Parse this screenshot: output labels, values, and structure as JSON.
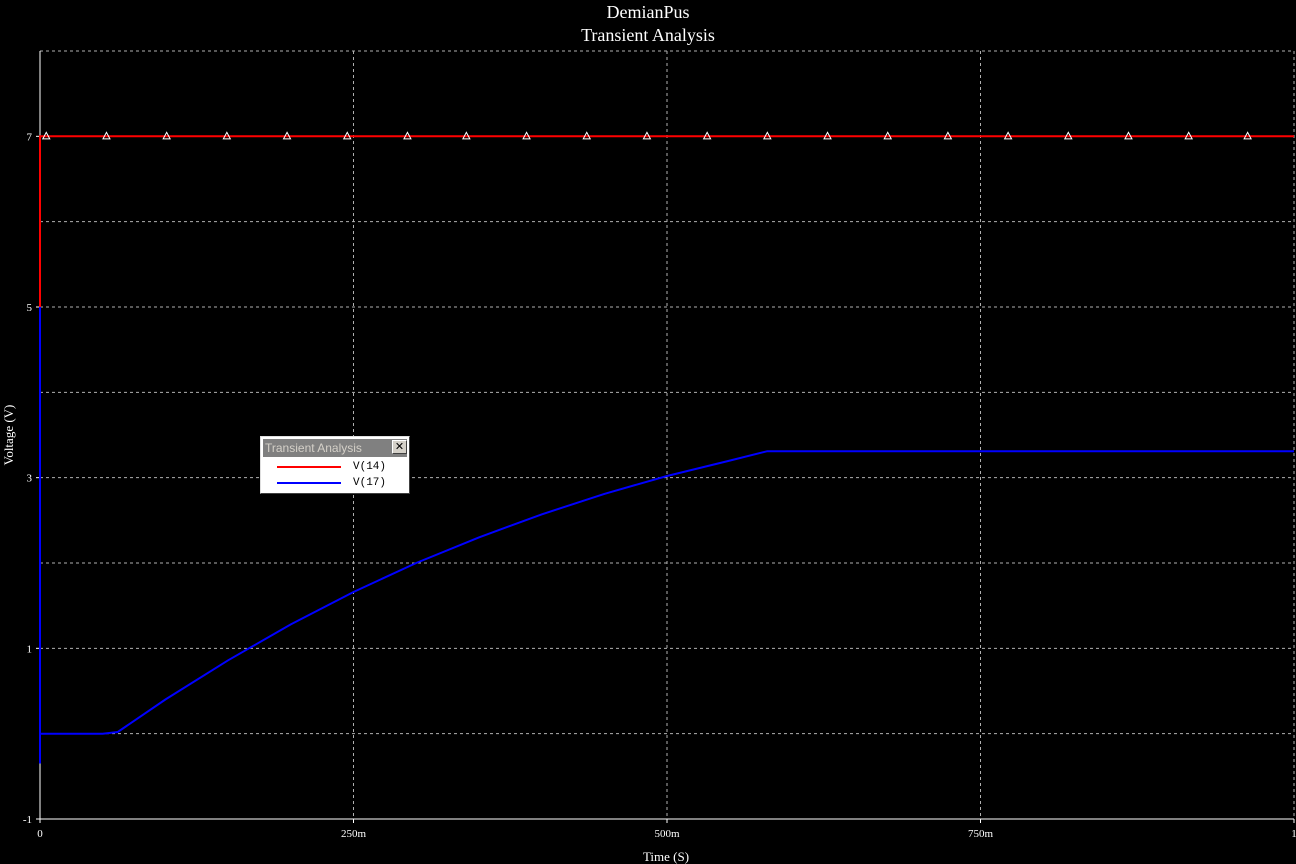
{
  "chart_data": {
    "type": "line",
    "title": "DemianPus",
    "subtitle": "Transient Analysis",
    "xlabel": "Time (S)",
    "ylabel": "Voltage (V)",
    "xlim": [
      0,
      1
    ],
    "ylim": [
      -1,
      8
    ],
    "grid": true,
    "x_ticks": [
      {
        "value": 0,
        "label": "0"
      },
      {
        "value": 0.25,
        "label": "250m"
      },
      {
        "value": 0.5,
        "label": "500m"
      },
      {
        "value": 0.75,
        "label": "750m"
      },
      {
        "value": 1,
        "label": "1"
      }
    ],
    "y_ticks": [
      {
        "value": -1,
        "label": "-1"
      },
      {
        "value": 1,
        "label": "1"
      },
      {
        "value": 3,
        "label": "3"
      },
      {
        "value": 5,
        "label": "5"
      },
      {
        "value": 7,
        "label": "7"
      }
    ],
    "y_gridlines": [
      0,
      1,
      2,
      3,
      4,
      5,
      6,
      7
    ],
    "series": [
      {
        "name": "V(14)",
        "color": "#ff0000",
        "marker": "triangle",
        "marker_color": "#ffffff",
        "x": [
          0,
          0,
          1
        ],
        "y": [
          0,
          7,
          7
        ],
        "marker_x": [
          0.005,
          0.053,
          0.101,
          0.149,
          0.197,
          0.245,
          0.293,
          0.34,
          0.388,
          0.436,
          0.484,
          0.532,
          0.58,
          0.628,
          0.676,
          0.724,
          0.772,
          0.82,
          0.868,
          0.916,
          0.963
        ],
        "marker_y": [
          7,
          7,
          7,
          7,
          7,
          7,
          7,
          7,
          7,
          7,
          7,
          7,
          7,
          7,
          7,
          7,
          7,
          7,
          7,
          7,
          7
        ]
      },
      {
        "name": "V(17)",
        "color": "#0000ff",
        "x": [
          0,
          0,
          0,
          0.05,
          0.062,
          0.1,
          0.15,
          0.2,
          0.25,
          0.3,
          0.35,
          0.4,
          0.45,
          0.5,
          0.55,
          0.58,
          0.6,
          0.7,
          0.8,
          0.9,
          1.0
        ],
        "y": [
          5,
          -0.35,
          0,
          0,
          0.02,
          0.4,
          0.86,
          1.28,
          1.66,
          2.0,
          2.3,
          2.57,
          2.81,
          3.02,
          3.2,
          3.31,
          3.31,
          3.31,
          3.31,
          3.31,
          3.31
        ]
      }
    ],
    "legend": {
      "title": "Transient Analysis",
      "close_glyph": "✕",
      "placement": "middle-left",
      "entries": [
        {
          "label": "V(14)",
          "color": "#ff0000"
        },
        {
          "label": "V(17)",
          "color": "#0000ff"
        }
      ]
    }
  }
}
